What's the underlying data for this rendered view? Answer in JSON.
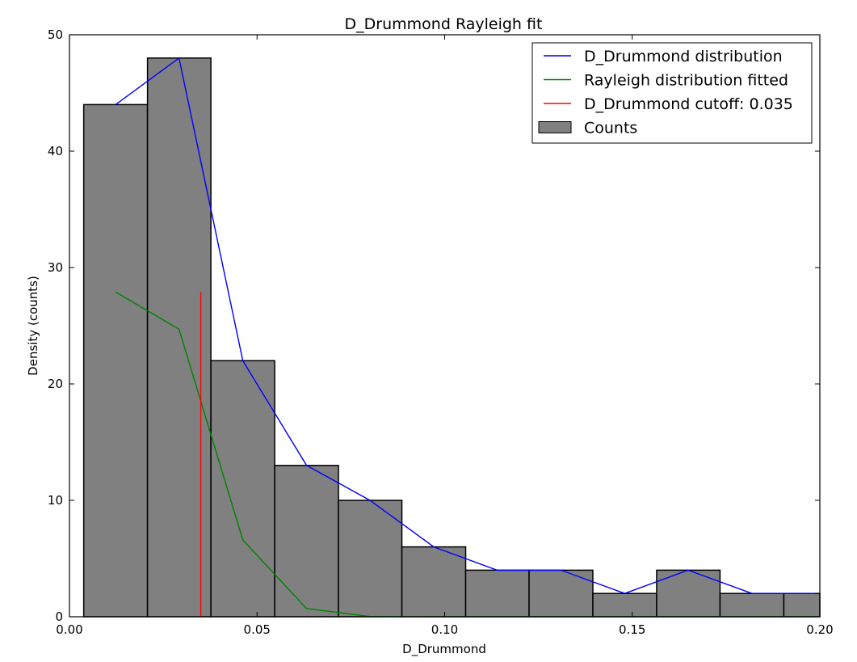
{
  "chart_data": {
    "type": "bar",
    "title": "D_Drummond Rayleigh fit",
    "xlabel": "D_Drummond",
    "ylabel": "Density (counts)",
    "xlim": [
      0.0,
      0.2
    ],
    "ylim": [
      0,
      50
    ],
    "xticks": [
      0.0,
      0.05,
      0.1,
      0.15,
      0.2
    ],
    "xtick_labels": [
      "0.00",
      "0.05",
      "0.10",
      "0.15",
      "0.20"
    ],
    "yticks": [
      0,
      10,
      20,
      30,
      40,
      50
    ],
    "ytick_labels": [
      "0",
      "10",
      "20",
      "30",
      "40",
      "50"
    ],
    "grid": false,
    "legend_position": "top-right",
    "bins": [
      {
        "x0": 0.0038,
        "x1": 0.0208,
        "count": 44
      },
      {
        "x0": 0.0208,
        "x1": 0.0377,
        "count": 48
      },
      {
        "x0": 0.0377,
        "x1": 0.0547,
        "count": 22
      },
      {
        "x0": 0.0547,
        "x1": 0.0717,
        "count": 13
      },
      {
        "x0": 0.0717,
        "x1": 0.0886,
        "count": 10
      },
      {
        "x0": 0.0886,
        "x1": 0.1056,
        "count": 6
      },
      {
        "x0": 0.1056,
        "x1": 0.1225,
        "count": 4
      },
      {
        "x0": 0.1225,
        "x1": 0.1395,
        "count": 4
      },
      {
        "x0": 0.1395,
        "x1": 0.1565,
        "count": 2
      },
      {
        "x0": 0.1565,
        "x1": 0.1734,
        "count": 4
      },
      {
        "x0": 0.1734,
        "x1": 0.1904,
        "count": 2
      },
      {
        "x0": 0.1904,
        "x1": 0.2073,
        "count": 2
      }
    ],
    "series": [
      {
        "name": "D_Drummond distribution",
        "type": "line",
        "color": "#0000ff",
        "x": [
          0.0123,
          0.0292,
          0.0462,
          0.0632,
          0.0801,
          0.0971,
          0.114,
          0.131,
          0.148,
          0.1649,
          0.1819,
          0.1988
        ],
        "y": [
          44,
          48,
          22,
          13,
          10,
          6,
          4,
          4,
          2,
          4,
          2,
          2
        ]
      },
      {
        "name": "Rayleigh distribution fitted",
        "type": "line",
        "color": "#008000",
        "x": [
          0.0123,
          0.0292,
          0.0462,
          0.0632,
          0.0801,
          0.0971,
          0.114,
          0.131,
          0.148,
          0.1649,
          0.1819,
          0.1988
        ],
        "y": [
          27.9,
          24.7,
          6.6,
          0.7,
          0.02,
          0,
          0,
          0,
          0,
          0,
          0,
          0
        ]
      },
      {
        "name": "D_Drummond cutoff: 0.035",
        "type": "vline",
        "color": "#ff0000",
        "x": 0.035,
        "y_range": [
          0,
          27.9
        ]
      }
    ],
    "bar_series": {
      "name": "Counts",
      "color": "#808080",
      "edge_color": "#000000"
    }
  }
}
